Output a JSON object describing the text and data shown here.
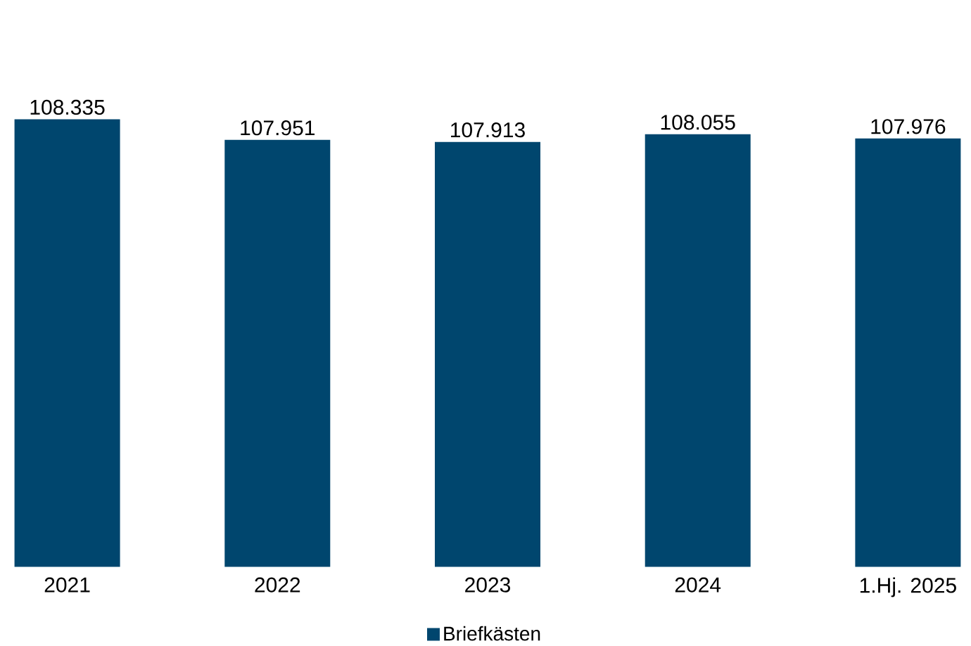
{
  "chart_data": {
    "type": "bar",
    "categories": [
      "2021",
      "2022",
      "2023",
      "2024",
      "1.Hj. 2025"
    ],
    "series": [
      {
        "name": "Briefkästen",
        "color": "#00466e",
        "values": [
          108335,
          107951,
          107913,
          108055,
          107976
        ],
        "value_labels": [
          "108.335",
          "107.951",
          "107.913",
          "108.055",
          "107.976"
        ]
      }
    ],
    "ylim": [
      100000,
      108335
    ],
    "tick_labels": "x",
    "legend": "bottom"
  }
}
